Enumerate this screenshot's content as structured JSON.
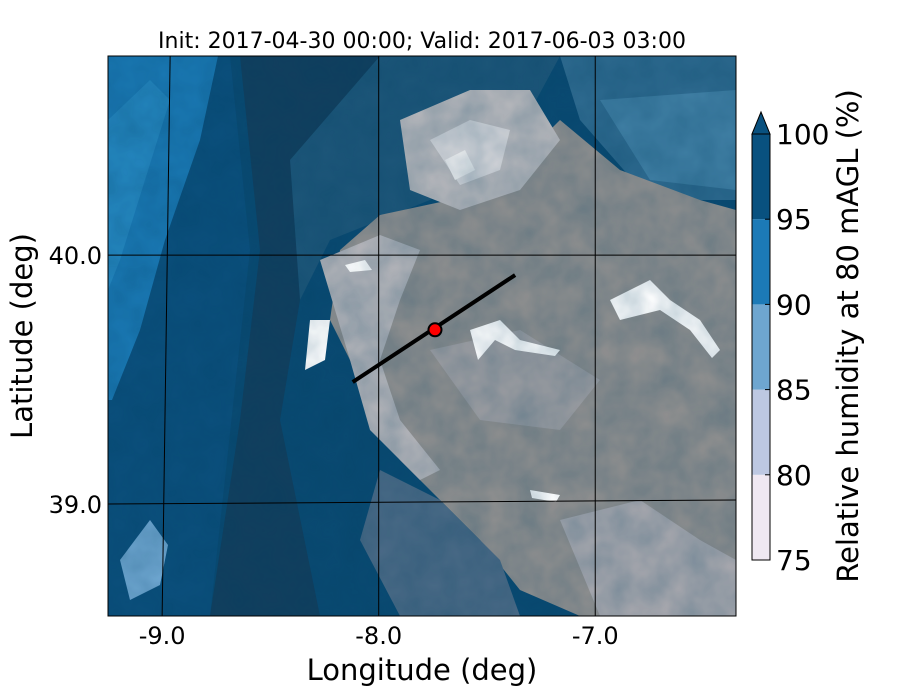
{
  "chart_data": {
    "type": "heatmap",
    "title": "Init: 2017-04-30 00:00; Valid: 2017-06-03 03:00",
    "xlabel": "Longitude (deg)",
    "ylabel": "Latitude (deg)",
    "xlim": [
      -9.25,
      -6.35
    ],
    "ylim": [
      38.55,
      40.8
    ],
    "xticks": [
      {
        "value": -9.0,
        "label": "-9.0"
      },
      {
        "value": -8.0,
        "label": "-8.0"
      },
      {
        "value": -7.0,
        "label": "-7.0"
      }
    ],
    "yticks": [
      {
        "value": 40.0,
        "label": "40.0"
      },
      {
        "value": 39.0,
        "label": "39.0"
      }
    ],
    "graticule_lon": [
      -9.0,
      -8.0,
      -7.0
    ],
    "graticule_lat": [
      40.0,
      39.0
    ],
    "field": "Relative humidity at 80 mAGL (%)",
    "colorbar": {
      "label": "Relative humidity at 80 mAGL (%)",
      "extend": "max",
      "levels": [
        75,
        80,
        85,
        90,
        95,
        100
      ],
      "tick_labels": [
        "75",
        "80",
        "85",
        "90",
        "95",
        "100"
      ],
      "colors": [
        "#efe8f2",
        "#bdc8e2",
        "#6ea6d0",
        "#1c7ab7",
        "#09517f"
      ]
    },
    "terrain_mask_color": "#8f8f8f",
    "cross_section_line": {
      "lon": [
        -8.12,
        -7.37
      ],
      "lat": [
        39.49,
        39.92
      ]
    },
    "point_marker": {
      "lon": [
        -7.74
      ],
      "lat": [
        39.7
      ],
      "color": "#ff0000"
    }
  }
}
